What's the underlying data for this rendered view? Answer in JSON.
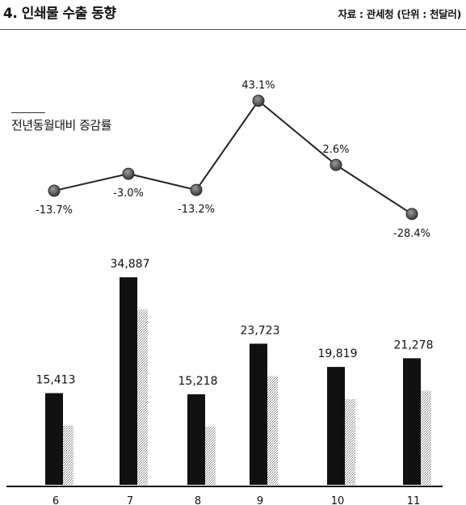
{
  "header": {
    "title": "4. 인쇄물 수출 동향",
    "source": "자료 : 관세청 (단위 : 천달러)"
  },
  "line_label": "전년동월대비 증감률",
  "chart_data": [
    {
      "type": "bar",
      "categories": [
        "6",
        "7",
        "8",
        "9",
        "10",
        "11"
      ],
      "values": [
        15413,
        34887,
        15218,
        23723,
        19819,
        21278
      ],
      "value_labels": [
        "15,413",
        "34,887",
        "15,218",
        "23,723",
        "19,819",
        "21,278"
      ],
      "ylim": [
        0,
        36000
      ],
      "colors": {
        "bar": "#111111",
        "shadow": "#9a9a9a"
      }
    },
    {
      "type": "line",
      "categories": [
        "6",
        "7",
        "8",
        "9",
        "10",
        "11"
      ],
      "values": [
        -13.7,
        -3.0,
        -13.2,
        43.1,
        2.6,
        -28.4
      ],
      "value_labels": [
        "-13.7%",
        "-3.0%",
        "-13.2%",
        "43.1%",
        "2.6%",
        "-28.4%"
      ],
      "label_positions": [
        "below",
        "below",
        "below",
        "above",
        "above",
        "below"
      ],
      "ylim": [
        -30,
        45
      ],
      "colors": {
        "line": "#222222",
        "marker": "#5a5a5a"
      }
    }
  ]
}
